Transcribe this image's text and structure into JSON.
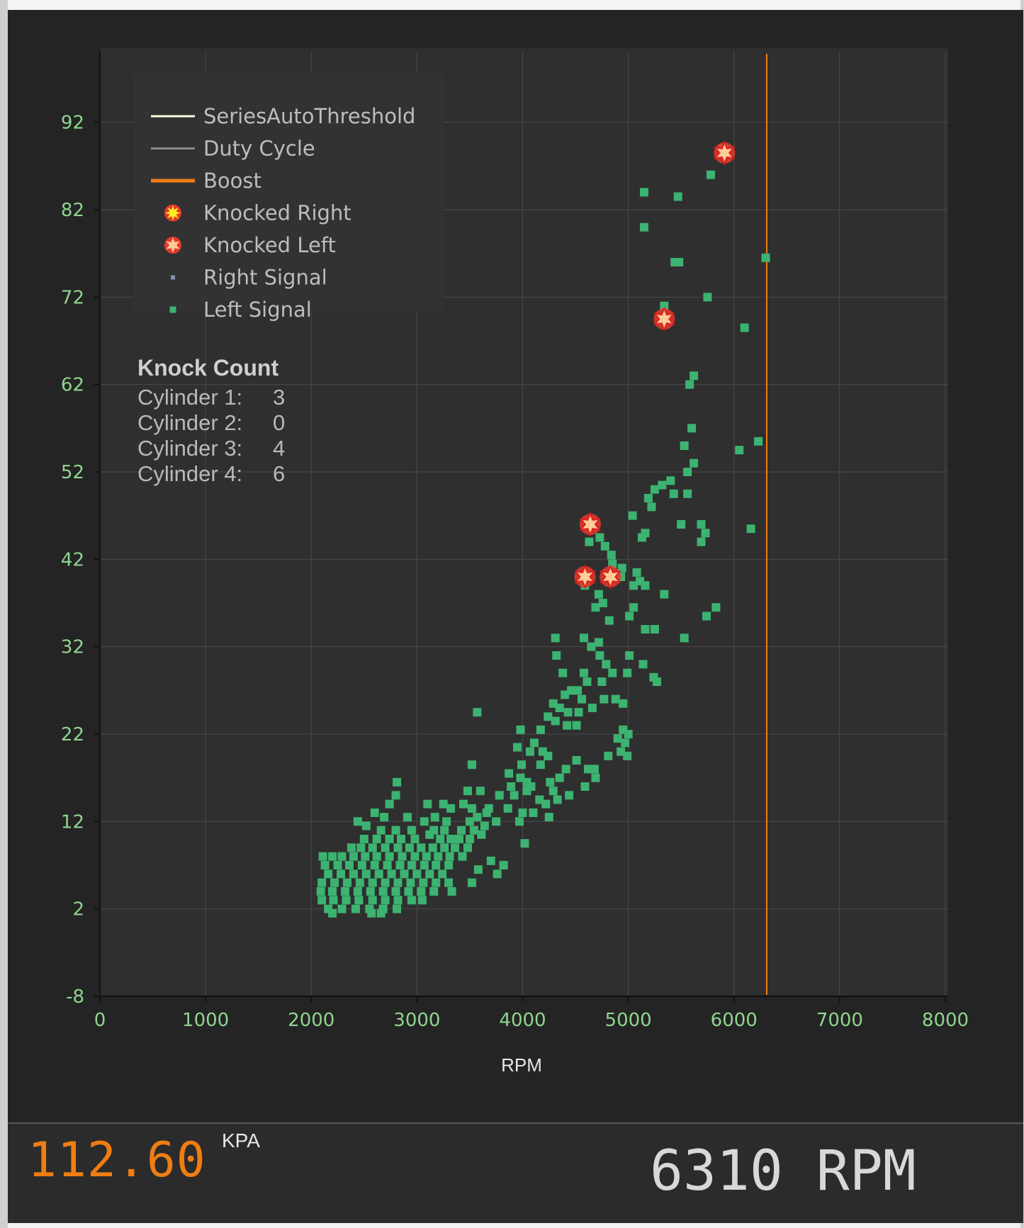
{
  "chart_data": {
    "type": "scatter",
    "xlabel": "RPM",
    "ylabel": "",
    "xlim": [
      0,
      8000
    ],
    "ylim": [
      -8,
      100
    ],
    "x_ticks": [
      0,
      1000,
      2000,
      3000,
      4000,
      5000,
      6000,
      7000,
      8000
    ],
    "y_ticks": [
      -8,
      2,
      12,
      22,
      32,
      42,
      52,
      62,
      72,
      82,
      92
    ],
    "grid": true,
    "legend_position": "top-left",
    "legend": [
      {
        "label": "SeriesAutoThreshold",
        "kind": "line",
        "color": "#fffbe0"
      },
      {
        "label": "Duty Cycle",
        "kind": "line",
        "color": "#8a8a8a"
      },
      {
        "label": "Boost",
        "kind": "line",
        "color": "#f07d12"
      },
      {
        "label": "Knocked Right",
        "kind": "star",
        "color": "#ffee22"
      },
      {
        "label": "Knocked Left",
        "kind": "star",
        "color": "#ffcc99"
      },
      {
        "label": "Right Signal",
        "kind": "square",
        "color": "#8090a8"
      },
      {
        "label": "Left Signal",
        "kind": "square",
        "color": "#3cb371"
      }
    ],
    "threshold_rpm": 6310,
    "series": [
      {
        "name": "Left Signal",
        "color": "#3cb371",
        "points": [
          [
            5900,
            89
          ],
          [
            5780,
            86
          ],
          [
            5150,
            84
          ],
          [
            5470,
            83.5
          ],
          [
            5150,
            80
          ],
          [
            5440,
            76
          ],
          [
            5480,
            76
          ],
          [
            6300,
            76.5
          ],
          [
            5750,
            72
          ],
          [
            5340,
            71
          ],
          [
            6100,
            68.5
          ],
          [
            5620,
            63
          ],
          [
            5580,
            62
          ],
          [
            5600,
            57
          ],
          [
            5530,
            55
          ],
          [
            6050,
            54.5
          ],
          [
            6230,
            55.5
          ],
          [
            5620,
            53
          ],
          [
            5560,
            52
          ],
          [
            5400,
            51
          ],
          [
            5320,
            50.5
          ],
          [
            5250,
            50
          ],
          [
            5430,
            49.5
          ],
          [
            5560,
            49.5
          ],
          [
            5190,
            49
          ],
          [
            5220,
            48
          ],
          [
            5040,
            47
          ],
          [
            5500,
            46
          ],
          [
            5690,
            46
          ],
          [
            5730,
            45
          ],
          [
            5160,
            45
          ],
          [
            5130,
            44.5
          ],
          [
            6160,
            45.5
          ],
          [
            5690,
            44
          ],
          [
            4630,
            44
          ],
          [
            4730,
            44.5
          ],
          [
            4780,
            43.5
          ],
          [
            4840,
            42.5
          ],
          [
            4850,
            41.5
          ],
          [
            4940,
            41
          ],
          [
            5080,
            40.5
          ],
          [
            4930,
            40
          ],
          [
            5110,
            39.5
          ],
          [
            5050,
            39
          ],
          [
            5160,
            39
          ],
          [
            4590,
            39
          ],
          [
            4720,
            38
          ],
          [
            5340,
            38
          ],
          [
            4760,
            37
          ],
          [
            4690,
            36.5
          ],
          [
            5010,
            35.5
          ],
          [
            5050,
            36.5
          ],
          [
            4820,
            35
          ],
          [
            5830,
            36.5
          ],
          [
            5740,
            35.5
          ],
          [
            5160,
            34
          ],
          [
            5250,
            34
          ],
          [
            5530,
            33
          ],
          [
            4310,
            33
          ],
          [
            4580,
            33
          ],
          [
            4720,
            32.5
          ],
          [
            4650,
            32
          ],
          [
            4320,
            31
          ],
          [
            5010,
            31
          ],
          [
            4730,
            31
          ],
          [
            4790,
            30
          ],
          [
            5140,
            30
          ],
          [
            4380,
            29
          ],
          [
            4580,
            29
          ],
          [
            4850,
            29
          ],
          [
            4990,
            29
          ],
          [
            5270,
            28
          ],
          [
            5240,
            28.5
          ],
          [
            4750,
            28
          ],
          [
            4610,
            28
          ],
          [
            4460,
            27
          ],
          [
            4520,
            27
          ],
          [
            4400,
            26.5
          ],
          [
            4560,
            26
          ],
          [
            4770,
            26
          ],
          [
            4880,
            26
          ],
          [
            4950,
            25.5
          ],
          [
            4290,
            25.5
          ],
          [
            4350,
            25
          ],
          [
            4430,
            24.5
          ],
          [
            4530,
            24.5
          ],
          [
            4660,
            25
          ],
          [
            3570,
            24.5
          ],
          [
            4240,
            24
          ],
          [
            4310,
            23.5
          ],
          [
            4420,
            23
          ],
          [
            4170,
            22.5
          ],
          [
            4510,
            23
          ],
          [
            4950,
            22.5
          ],
          [
            5000,
            22
          ],
          [
            4970,
            21
          ],
          [
            4900,
            21.5
          ],
          [
            3980,
            22.5
          ],
          [
            4110,
            21
          ],
          [
            3950,
            20.5
          ],
          [
            4070,
            20
          ],
          [
            4190,
            20
          ],
          [
            4240,
            19.5
          ],
          [
            4930,
            20
          ],
          [
            4990,
            19.5
          ],
          [
            4810,
            19.5
          ],
          [
            4510,
            19
          ],
          [
            4410,
            18
          ],
          [
            4620,
            18
          ],
          [
            4170,
            18.5
          ],
          [
            3990,
            18.5
          ],
          [
            3520,
            18.5
          ],
          [
            4680,
            18
          ],
          [
            3870,
            17.5
          ],
          [
            3980,
            17
          ],
          [
            4040,
            16.5
          ],
          [
            4260,
            16.5
          ],
          [
            4350,
            17
          ],
          [
            4690,
            17
          ],
          [
            2810,
            16.5
          ],
          [
            3890,
            16
          ],
          [
            4080,
            16
          ],
          [
            4590,
            16
          ],
          [
            4290,
            15.5
          ],
          [
            3780,
            15
          ],
          [
            3920,
            15
          ],
          [
            4040,
            15.5
          ],
          [
            4440,
            15
          ],
          [
            2800,
            15
          ],
          [
            3480,
            15.5
          ],
          [
            3600,
            15.5
          ],
          [
            4160,
            14.5
          ],
          [
            4220,
            14
          ],
          [
            4330,
            14.5
          ],
          [
            3440,
            14
          ],
          [
            3520,
            13.5
          ],
          [
            3680,
            13.5
          ],
          [
            3860,
            13.5
          ],
          [
            4000,
            13
          ],
          [
            4100,
            13
          ],
          [
            2740,
            14
          ],
          [
            3100,
            14
          ],
          [
            3250,
            14
          ],
          [
            3320,
            13.5
          ],
          [
            3570,
            12.5
          ],
          [
            3660,
            13
          ],
          [
            2600,
            13
          ],
          [
            2690,
            12.5
          ],
          [
            2910,
            12.5
          ],
          [
            3070,
            12
          ],
          [
            3170,
            12.5
          ],
          [
            3280,
            12
          ],
          [
            3500,
            12
          ],
          [
            3750,
            12
          ],
          [
            3970,
            12
          ],
          [
            4250,
            12.5
          ],
          [
            2440,
            12
          ],
          [
            2520,
            11.5
          ],
          [
            2660,
            11
          ],
          [
            2800,
            11
          ],
          [
            2950,
            11
          ],
          [
            3160,
            11
          ],
          [
            3260,
            11
          ],
          [
            3420,
            11
          ],
          [
            3540,
            11
          ],
          [
            3640,
            11.5
          ],
          [
            2500,
            10
          ],
          [
            2620,
            10
          ],
          [
            2740,
            10
          ],
          [
            2850,
            10
          ],
          [
            2980,
            10
          ],
          [
            3120,
            10.5
          ],
          [
            3220,
            10
          ],
          [
            3320,
            10
          ],
          [
            3400,
            10
          ],
          [
            3500,
            10
          ],
          [
            3610,
            10.5
          ],
          [
            2380,
            9
          ],
          [
            2470,
            9
          ],
          [
            2580,
            9
          ],
          [
            2700,
            9
          ],
          [
            2820,
            9
          ],
          [
            2930,
            9
          ],
          [
            3040,
            9
          ],
          [
            3150,
            9
          ],
          [
            3260,
            9
          ],
          [
            3360,
            9
          ],
          [
            3480,
            9
          ],
          [
            4020,
            9.5
          ],
          [
            2110,
            8
          ],
          [
            2200,
            8
          ],
          [
            2290,
            8
          ],
          [
            2400,
            8
          ],
          [
            2510,
            8
          ],
          [
            2620,
            8
          ],
          [
            2740,
            8
          ],
          [
            2860,
            8
          ],
          [
            2980,
            8
          ],
          [
            3090,
            8
          ],
          [
            3200,
            8
          ],
          [
            3310,
            8
          ],
          [
            3430,
            8
          ],
          [
            2130,
            7
          ],
          [
            2250,
            7
          ],
          [
            2360,
            7
          ],
          [
            2480,
            7
          ],
          [
            2600,
            7
          ],
          [
            2720,
            7
          ],
          [
            2840,
            7
          ],
          [
            2950,
            7
          ],
          [
            3070,
            7
          ],
          [
            3180,
            7
          ],
          [
            3300,
            7
          ],
          [
            3700,
            7.5
          ],
          [
            3820,
            7
          ],
          [
            2160,
            6
          ],
          [
            2280,
            6
          ],
          [
            2400,
            6
          ],
          [
            2520,
            6
          ],
          [
            2640,
            6
          ],
          [
            2760,
            6
          ],
          [
            2880,
            6
          ],
          [
            3000,
            6
          ],
          [
            3120,
            6
          ],
          [
            3240,
            6
          ],
          [
            3580,
            6.5
          ],
          [
            3760,
            6
          ],
          [
            2100,
            5
          ],
          [
            2220,
            5
          ],
          [
            2340,
            5
          ],
          [
            2460,
            5
          ],
          [
            2580,
            5
          ],
          [
            2700,
            5
          ],
          [
            2820,
            5
          ],
          [
            2940,
            5
          ],
          [
            3060,
            5
          ],
          [
            3180,
            5
          ],
          [
            3300,
            5
          ],
          [
            3520,
            5
          ],
          [
            2090,
            4
          ],
          [
            2200,
            4
          ],
          [
            2320,
            4
          ],
          [
            2440,
            4
          ],
          [
            2560,
            4
          ],
          [
            2680,
            4
          ],
          [
            2800,
            4
          ],
          [
            2920,
            4
          ],
          [
            3040,
            4
          ],
          [
            3160,
            4
          ],
          [
            3330,
            4
          ],
          [
            2100,
            3
          ],
          [
            2210,
            3
          ],
          [
            2330,
            3
          ],
          [
            2450,
            3
          ],
          [
            2580,
            3
          ],
          [
            2700,
            3
          ],
          [
            2820,
            3
          ],
          [
            2950,
            3
          ],
          [
            3050,
            3
          ],
          [
            2160,
            2
          ],
          [
            2290,
            2
          ],
          [
            2420,
            2
          ],
          [
            2550,
            2
          ],
          [
            2680,
            2
          ],
          [
            2810,
            2
          ],
          [
            2570,
            1.5
          ],
          [
            2660,
            1.5
          ],
          [
            2200,
            1.5
          ]
        ]
      },
      {
        "name": "Knocked Left",
        "color": "#ffcc99",
        "points": [
          [
            5910,
            88.5
          ],
          [
            5340,
            69.5
          ],
          [
            4640,
            46
          ],
          [
            4590,
            40
          ],
          [
            4830,
            40
          ]
        ]
      }
    ],
    "knock_count": {
      "title": "Knock Count",
      "rows": [
        {
          "label": "Cylinder 1:",
          "value": "3"
        },
        {
          "label": "Cylinder 2:",
          "value": "0"
        },
        {
          "label": "Cylinder 3:",
          "value": "4"
        },
        {
          "label": "Cylinder 4:",
          "value": "6"
        }
      ]
    }
  },
  "readouts": {
    "kpa_value": "112.60",
    "kpa_unit": "KPA",
    "rpm_text": "6310 RPM"
  },
  "colors": {
    "background": "#242424",
    "plot_area": "#2f2f2f",
    "grid": "#4a4a4a",
    "tick_label": "#8fd48f",
    "boost": "#f07d12",
    "kpa_text": "#f07d12",
    "rpm_text": "#d8d8d8"
  }
}
